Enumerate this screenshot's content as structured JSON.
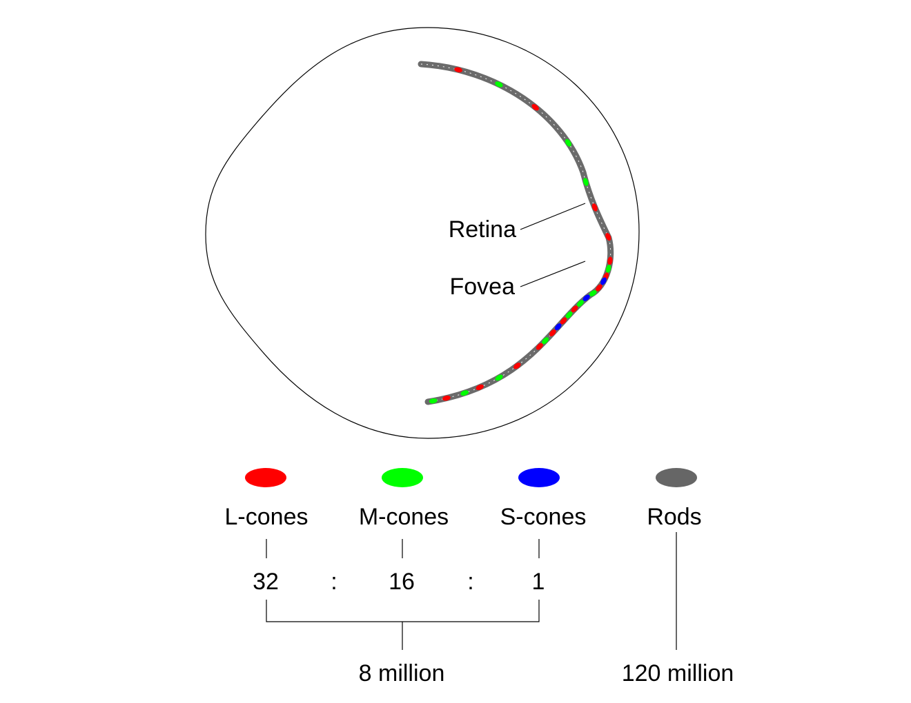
{
  "labels": {
    "retina": "Retina",
    "fovea": "Fovea"
  },
  "legend": [
    {
      "key": "l_cones",
      "label": "L-cones",
      "color": "#ff0000",
      "ratio": "32"
    },
    {
      "key": "m_cones",
      "label": "M-cones",
      "color": "#00ff00",
      "ratio": "16"
    },
    {
      "key": "s_cones",
      "label": "S-cones",
      "color": "#0000ff",
      "ratio": "1"
    },
    {
      "key": "rods",
      "label": "Rods",
      "color": "#666666"
    }
  ],
  "ratio_separator": ":",
  "totals": {
    "cones": "8 million",
    "rods": "120 million"
  }
}
